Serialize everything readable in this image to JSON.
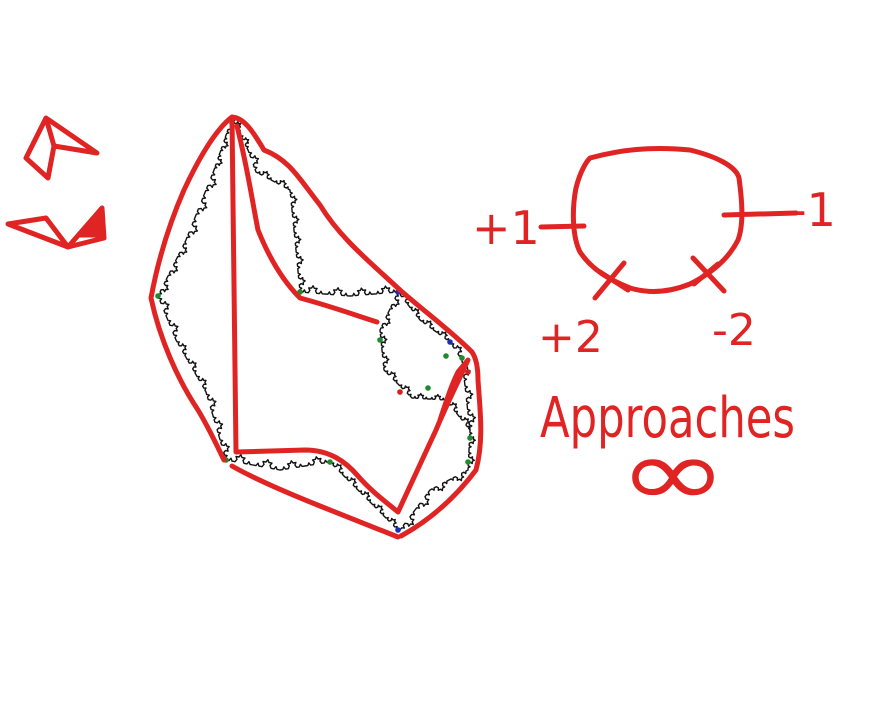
{
  "colors": {
    "background": "#ffffff",
    "red_ink": "#e02424",
    "fractal_ink": "#111111",
    "dot_green": "#1f8a2e",
    "dot_blue": "#1b2fb8",
    "dot_red": "#d42020"
  },
  "labels": {
    "plus_one": "+1",
    "minus_one": "-1",
    "plus_two": "+2",
    "minus_two": "-2",
    "approaches": "Approaches",
    "infinity": "∞"
  }
}
